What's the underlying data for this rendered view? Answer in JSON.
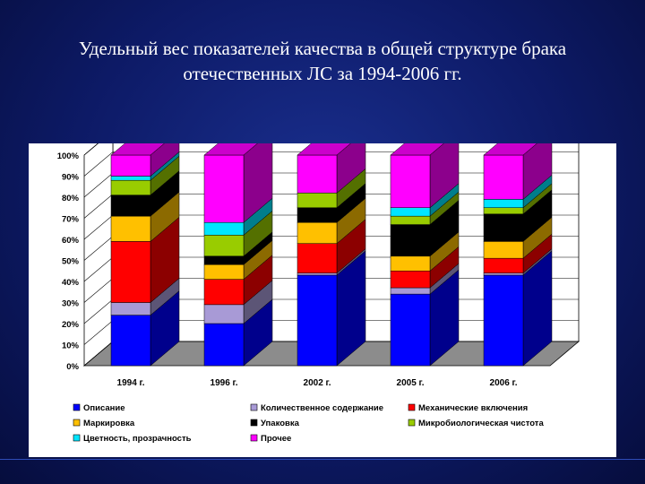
{
  "title_lines": [
    "Удельный вес показателей качества в общей структуре брака",
    "отечественных ЛС за 1994-2006 гг."
  ],
  "chart_data": {
    "type": "bar",
    "stacked": true,
    "three_d": true,
    "categories": [
      "1994 г.",
      "1996 г.",
      "2002 г.",
      "2005 г.",
      "2006 г."
    ],
    "y_ticks": [
      "0%",
      "10%",
      "20%",
      "30%",
      "40%",
      "50%",
      "60%",
      "70%",
      "80%",
      "90%",
      "100%"
    ],
    "ylim": [
      0,
      100
    ],
    "legend_position": "bottom",
    "series": [
      {
        "name": "Описание",
        "color": "#0000ff",
        "values": [
          24,
          20,
          43,
          34,
          43
        ]
      },
      {
        "name": "Количественное содержание",
        "color": "#a89ad6",
        "values": [
          6,
          9,
          1,
          3,
          1
        ]
      },
      {
        "name": "Механические включения",
        "color": "#ff0000",
        "values": [
          29,
          12,
          14,
          8,
          7
        ]
      },
      {
        "name": "Маркировка",
        "color": "#ffc000",
        "values": [
          12,
          7,
          10,
          7,
          8
        ]
      },
      {
        "name": "Упаковка",
        "color": "#000000",
        "values": [
          10,
          4,
          7,
          15,
          13
        ]
      },
      {
        "name": "Микробиологическая чистота",
        "color": "#99cc00",
        "values": [
          7,
          10,
          7,
          4,
          3
        ]
      },
      {
        "name": "Цветность, прозрачность",
        "color": "#00e5ff",
        "values": [
          2,
          6,
          0,
          4,
          4
        ]
      },
      {
        "name": "Прочее",
        "color": "#ff00ff",
        "values": [
          10,
          32,
          18,
          25,
          21
        ]
      }
    ]
  }
}
